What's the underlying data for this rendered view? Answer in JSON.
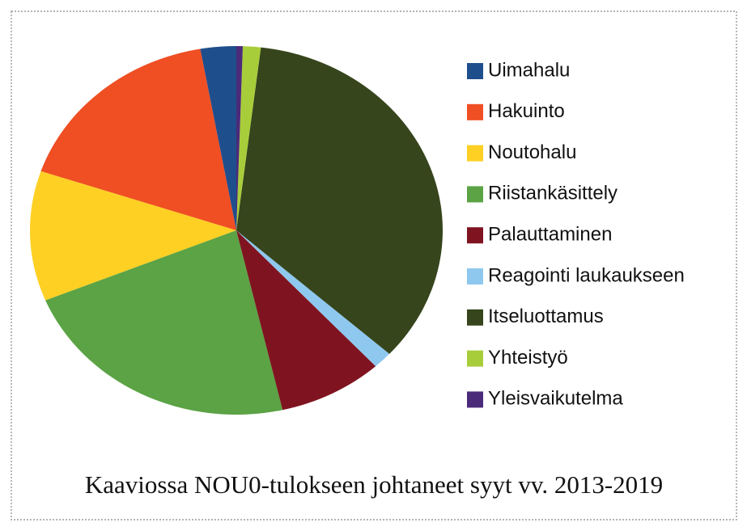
{
  "chart_data": {
    "type": "pie",
    "caption": "Kaaviossa NOU0-tulokseen johtaneet syyt vv. 2013-2019",
    "categories": [
      "Uimahalu",
      "Hakuinto",
      "Noutohalu",
      "Riistankäsittely",
      "Palauttaminen",
      "Reagointi laukaukseen",
      "Itseluottamus",
      "Yhteistyö",
      "Yleisvaikutelma"
    ],
    "values": [
      2.8,
      17,
      11.4,
      22.4,
      8.2,
      1.5,
      34.8,
      1.4,
      0.5
    ],
    "colors": [
      "#1f4e8c",
      "#f04e23",
      "#fdd023",
      "#5ba345",
      "#7f1420",
      "#8fc8ee",
      "#36451c",
      "#a8cd3a",
      "#4b2a7a"
    ],
    "legend": "right"
  }
}
